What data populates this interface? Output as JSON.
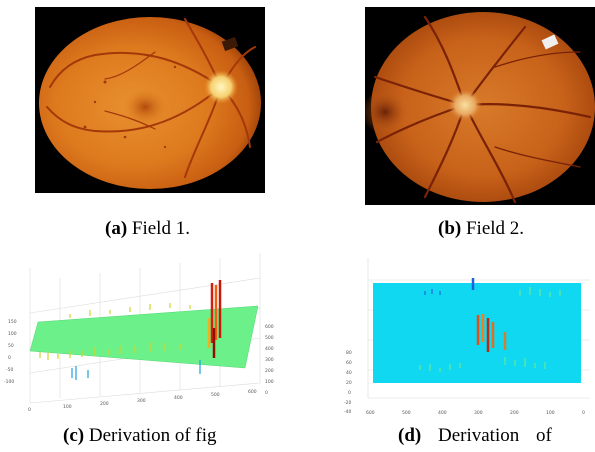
{
  "figure": {
    "panels": [
      {
        "id": "a",
        "label": "(a)",
        "caption": "Field 1."
      },
      {
        "id": "b",
        "label": "(b)",
        "caption": "Field 2."
      },
      {
        "id": "c",
        "label": "(c)",
        "caption": "Derivation of fig"
      },
      {
        "id": "d",
        "label": "(d)",
        "caption": "Derivation of"
      }
    ],
    "plot_c": {
      "left_ticks": [
        "150",
        "100",
        "50",
        "0",
        "-50",
        "-100"
      ],
      "bottom_ticks": [
        "0",
        "100",
        "200",
        "300",
        "400",
        "500",
        "600"
      ],
      "right_ticks": [
        "600",
        "500",
        "400",
        "300",
        "200",
        "100",
        "0"
      ]
    },
    "plot_d": {
      "left_ticks": [
        "80",
        "60",
        "40",
        "20",
        "0",
        "-20",
        "-40"
      ],
      "bottom_ticks": [
        "600",
        "500",
        "400",
        "300",
        "200",
        "100",
        "0"
      ]
    },
    "colors": {
      "fundus_dark": "#7a2a05",
      "fundus_mid": "#d8701a",
      "fundus_light": "#f0a040",
      "plane_c": "#6bf08a",
      "plane_d": "#10d8f0"
    }
  }
}
